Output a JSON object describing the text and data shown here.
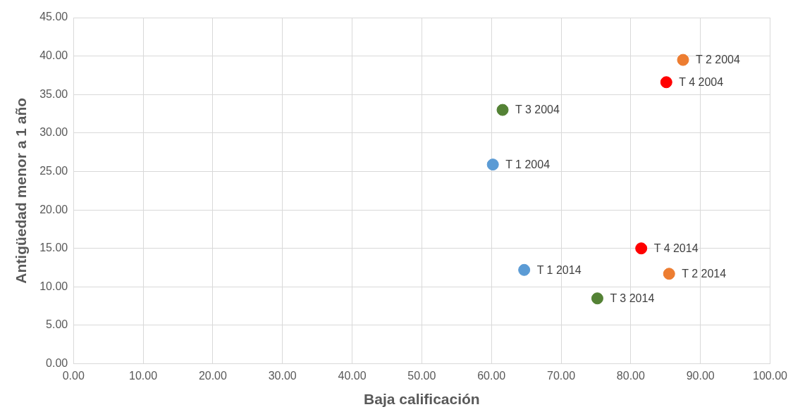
{
  "chart_data": {
    "type": "scatter",
    "xlabel": "Baja calificación",
    "ylabel": "Antigüedad menor a 1 año",
    "x": [
      87.5,
      85.1,
      61.6,
      60.2,
      81.5,
      64.7,
      85.5,
      75.2
    ],
    "values": [
      39.5,
      36.6,
      33.0,
      25.9,
      15.0,
      12.2,
      11.7,
      8.5
    ],
    "colors": [
      "#ed7d31",
      "#ff0000",
      "#548235",
      "#5b9bd5",
      "#ff0000",
      "#5b9bd5",
      "#ed7d31",
      "#548235"
    ],
    "marker": "circle",
    "grid": true,
    "legend": false,
    "xlim": [
      0,
      100
    ],
    "ylim": [
      0,
      45
    ],
    "xticks": [
      {
        "value": 0,
        "label": "0.00"
      },
      {
        "value": 10,
        "label": "10.00"
      },
      {
        "value": 20,
        "label": "20.00"
      },
      {
        "value": 30,
        "label": "30.00"
      },
      {
        "value": 40,
        "label": "40.00"
      },
      {
        "value": 50,
        "label": "50.00"
      },
      {
        "value": 60,
        "label": "60.00"
      },
      {
        "value": 70,
        "label": "70.00"
      },
      {
        "value": 80,
        "label": "80.00"
      },
      {
        "value": 90,
        "label": "90.00"
      },
      {
        "value": 100,
        "label": "100.00"
      }
    ],
    "yticks": [
      {
        "value": 0,
        "label": "0.00"
      },
      {
        "value": 5,
        "label": "5.00"
      },
      {
        "value": 10,
        "label": "10.00"
      },
      {
        "value": 15,
        "label": "15.00"
      },
      {
        "value": 20,
        "label": "20.00"
      },
      {
        "value": 25,
        "label": "25.00"
      },
      {
        "value": 30,
        "label": "30.00"
      },
      {
        "value": 35,
        "label": "35.00"
      },
      {
        "value": 40,
        "label": "40.00"
      },
      {
        "value": 45,
        "label": "45.00"
      }
    ],
    "annotations": [
      {
        "text": "T 2 2004",
        "x": 87.5,
        "y": 39.5
      },
      {
        "text": "T 4 2004",
        "x": 85.1,
        "y": 36.6
      },
      {
        "text": "T 3 2004",
        "x": 61.6,
        "y": 33.0
      },
      {
        "text": "T 1 2004",
        "x": 60.2,
        "y": 25.9
      },
      {
        "text": "T 4 2014",
        "x": 81.5,
        "y": 15.0
      },
      {
        "text": "T 1 2014",
        "x": 64.7,
        "y": 12.2
      },
      {
        "text": "T 2 2014",
        "x": 85.5,
        "y": 11.7
      },
      {
        "text": "T 3 2014",
        "x": 75.2,
        "y": 8.5
      }
    ]
  }
}
